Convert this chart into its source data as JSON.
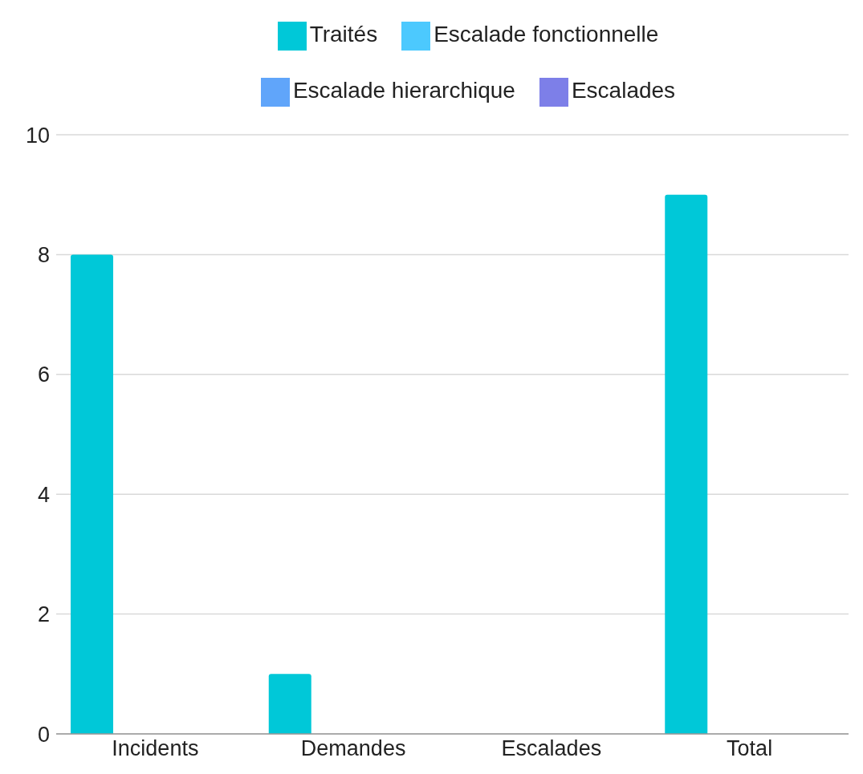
{
  "chart_data": {
    "type": "bar",
    "categories": [
      "Incidents",
      "Demandes",
      "Escalades",
      "Total"
    ],
    "series": [
      {
        "name": "Traités",
        "color": "#00c8d8",
        "values": [
          8,
          1,
          0,
          9
        ]
      },
      {
        "name": "Escalade fonctionnelle",
        "color": "#4cc9fe",
        "values": [
          0,
          0,
          0,
          0
        ]
      },
      {
        "name": "Escalade hierarchique",
        "color": "#60a5fa",
        "values": [
          0,
          0,
          0,
          0
        ]
      },
      {
        "name": "Escalades",
        "color": "#7d7fe8",
        "values": [
          0,
          0,
          0,
          0
        ]
      }
    ],
    "ylim": [
      0,
      10
    ],
    "yticks": [
      0,
      2,
      4,
      6,
      8,
      10
    ],
    "grid": "y",
    "legend": "top"
  }
}
